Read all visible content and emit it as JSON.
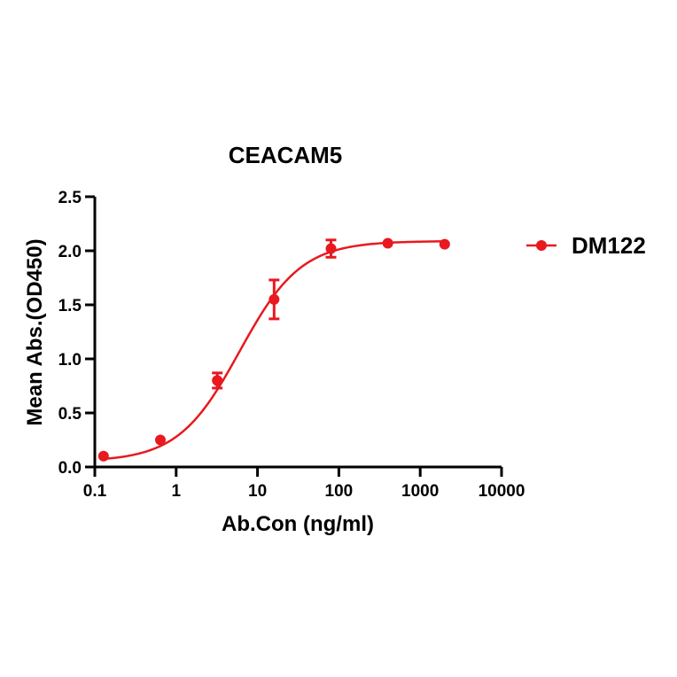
{
  "chart_data": {
    "type": "scatter",
    "title": "CEACAM5",
    "xlabel": "Ab.Con (ng/ml)",
    "ylabel": "Mean Abs.(OD450)",
    "xscale": "log",
    "xlim": [
      0.1,
      10000
    ],
    "ylim": [
      0,
      2.5
    ],
    "x_ticks": [
      0.1,
      1,
      10,
      100,
      1000,
      10000
    ],
    "x_tick_labels": [
      "0.1",
      "1",
      "10",
      "100",
      "1000",
      "10000"
    ],
    "y_ticks": [
      0,
      0.5,
      1,
      1.5,
      2,
      2.5
    ],
    "y_tick_labels": [
      "0.0",
      "0.5",
      "1.0",
      "1.5",
      "2.0",
      "2.5"
    ],
    "legend_position": "right",
    "grid": false,
    "series": [
      {
        "name": "DM122",
        "color": "#e8191f",
        "marker": "circle",
        "fit": "sigmoidal 4PL",
        "x": [
          0.128,
          0.64,
          3.2,
          16,
          80,
          400,
          2000
        ],
        "y": [
          0.1,
          0.25,
          0.8,
          1.55,
          2.02,
          2.07,
          2.06
        ],
        "error": [
          0.01,
          0.01,
          0.07,
          0.18,
          0.08,
          0.01,
          0.01
        ]
      }
    ],
    "fit_curve": {
      "bottom": 0.05,
      "top": 2.09,
      "log_ec50": 0.78,
      "hill": 1.15
    }
  }
}
